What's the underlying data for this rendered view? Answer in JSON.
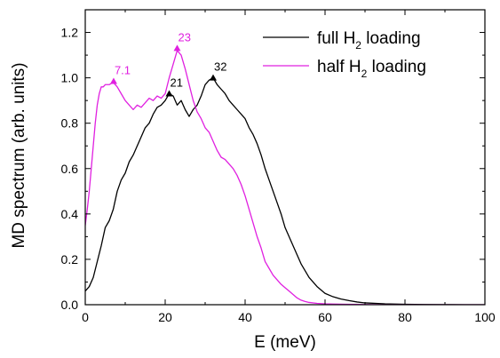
{
  "chart_data": {
    "type": "line",
    "xlabel": "E (meV)",
    "ylabel": "MD spectrum (arb. units)",
    "xlim": [
      0,
      100
    ],
    "ylim": [
      0.0,
      1.3
    ],
    "x_ticks": [
      0,
      20,
      40,
      60,
      80,
      100
    ],
    "y_ticks": [
      "0.0",
      "0.2",
      "0.4",
      "0.6",
      "0.8",
      "1.0",
      "1.2"
    ],
    "grid": false,
    "legend_position": "top-right",
    "series": [
      {
        "name": "full H2 loading",
        "legend_main": "full H",
        "legend_sub": "2",
        "legend_tail": " loading",
        "color": "#000000",
        "x": [
          0,
          1,
          2,
          3,
          4,
          5,
          6,
          7,
          8,
          9,
          10,
          11,
          12,
          13,
          14,
          15,
          16,
          17,
          18,
          19,
          20,
          21,
          22,
          23,
          24,
          25,
          26,
          27,
          28,
          29,
          30,
          31,
          32,
          33,
          34,
          35,
          36,
          37,
          38,
          39,
          40,
          41,
          42,
          43,
          44,
          45,
          46,
          47,
          48,
          49,
          50,
          52,
          54,
          56,
          58,
          60,
          62,
          64,
          66,
          68,
          70,
          75,
          80,
          85,
          90,
          95,
          100
        ],
        "y": [
          0.06,
          0.08,
          0.12,
          0.19,
          0.26,
          0.34,
          0.37,
          0.42,
          0.5,
          0.55,
          0.58,
          0.63,
          0.66,
          0.7,
          0.74,
          0.78,
          0.8,
          0.84,
          0.87,
          0.88,
          0.9,
          0.93,
          0.92,
          0.88,
          0.9,
          0.86,
          0.83,
          0.86,
          0.88,
          0.92,
          0.97,
          0.99,
          1.0,
          0.97,
          0.95,
          0.93,
          0.9,
          0.88,
          0.86,
          0.84,
          0.82,
          0.78,
          0.75,
          0.71,
          0.66,
          0.6,
          0.55,
          0.5,
          0.45,
          0.4,
          0.34,
          0.26,
          0.18,
          0.12,
          0.08,
          0.05,
          0.035,
          0.025,
          0.018,
          0.012,
          0.008,
          0.004,
          0.002,
          0.001,
          0.0005,
          0.0,
          0.0
        ]
      },
      {
        "name": "half H2 loading",
        "legend_main": "half H",
        "legend_sub": "2",
        "legend_tail": " loading",
        "color": "#e020e0",
        "x": [
          0,
          0.5,
          1,
          1.5,
          2,
          2.5,
          3,
          3.5,
          4,
          4.5,
          5,
          6,
          7,
          8,
          9,
          10,
          11,
          12,
          13,
          14,
          15,
          16,
          17,
          18,
          19,
          20,
          21,
          22,
          23,
          24,
          25,
          26,
          27,
          28,
          29,
          30,
          31,
          32,
          33,
          34,
          35,
          36,
          37,
          38,
          39,
          40,
          41,
          42,
          43,
          44,
          45,
          46,
          47,
          48,
          49,
          50,
          51,
          52,
          53,
          54,
          55,
          56,
          58,
          60,
          62,
          65,
          70,
          75,
          80,
          90,
          100
        ],
        "y": [
          0.35,
          0.42,
          0.5,
          0.6,
          0.7,
          0.8,
          0.88,
          0.93,
          0.96,
          0.96,
          0.97,
          0.97,
          0.98,
          0.96,
          0.93,
          0.9,
          0.88,
          0.86,
          0.88,
          0.87,
          0.89,
          0.91,
          0.9,
          0.92,
          0.91,
          0.93,
          1.0,
          1.06,
          1.12,
          1.1,
          1.04,
          0.97,
          0.9,
          0.85,
          0.82,
          0.78,
          0.76,
          0.72,
          0.68,
          0.65,
          0.64,
          0.62,
          0.6,
          0.57,
          0.53,
          0.48,
          0.42,
          0.36,
          0.3,
          0.25,
          0.19,
          0.16,
          0.13,
          0.11,
          0.09,
          0.075,
          0.06,
          0.045,
          0.03,
          0.02,
          0.014,
          0.01,
          0.006,
          0.004,
          0.003,
          0.002,
          0.001,
          0.0,
          0.0,
          0.0,
          0.0
        ]
      }
    ],
    "annotations": [
      {
        "label": "7.1",
        "x": 7.1,
        "y": 0.985,
        "color": "#e020e0"
      },
      {
        "label": "23",
        "x": 23,
        "y": 1.13,
        "color": "#e020e0"
      },
      {
        "label": "21",
        "x": 21,
        "y": 0.93,
        "color": "#000000"
      },
      {
        "label": "32",
        "x": 32,
        "y": 1.0,
        "color": "#000000"
      }
    ]
  }
}
